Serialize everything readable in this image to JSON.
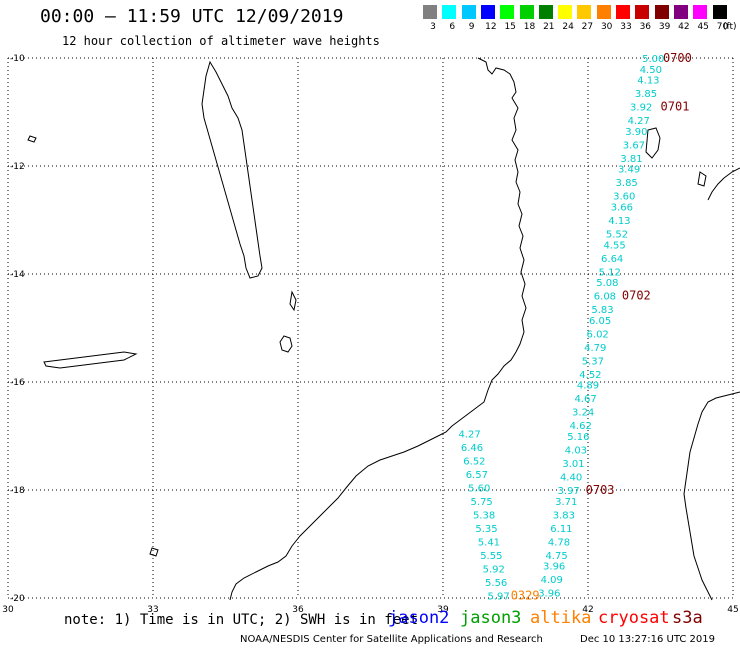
{
  "header": {
    "title": "00:00 – 11:59 UTC 12/09/2019",
    "subtitle": "12 hour collection of altimeter wave heights"
  },
  "legend": {
    "ticks": [
      "3",
      "6",
      "9",
      "12",
      "15",
      "18",
      "21",
      "24",
      "27",
      "30",
      "33",
      "36",
      "39",
      "42",
      "45",
      "70"
    ],
    "units": "(ft)",
    "colors": [
      "#808080",
      "#00ffff",
      "#00c8ff",
      "#0000ff",
      "#00ff00",
      "#00d000",
      "#008000",
      "#ffff00",
      "#ffc800",
      "#ff8000",
      "#ff0000",
      "#c80000",
      "#800000",
      "#800080",
      "#ff00ff",
      "#000000"
    ]
  },
  "axes": {
    "lon_labels": [
      "30",
      "33",
      "36",
      "39",
      "42",
      "45"
    ],
    "lat_labels": [
      "-10",
      "-12",
      "-14",
      "-16",
      "-18",
      "-20"
    ]
  },
  "track_colors": {
    "jason2": "#0000ff",
    "jason3": "#00a000",
    "altika": "#ff8000",
    "cryosat": "#ff0000",
    "s3a": "#800000",
    "obs": "#00cccc"
  },
  "observations": [
    {
      "lon": 43.35,
      "lat": -10.0,
      "v": "5.00"
    },
    {
      "lon": 43.3,
      "lat": -10.2,
      "v": "4.50"
    },
    {
      "lon": 43.25,
      "lat": -10.4,
      "v": "4.13"
    },
    {
      "lon": 43.2,
      "lat": -10.65,
      "v": "3.85"
    },
    {
      "lon": 43.1,
      "lat": -10.9,
      "v": "3.92"
    },
    {
      "lon": 43.05,
      "lat": -11.15,
      "v": "4.27"
    },
    {
      "lon": 43.0,
      "lat": -11.35,
      "v": "3.90"
    },
    {
      "lon": 42.95,
      "lat": -11.6,
      "v": "3.67"
    },
    {
      "lon": 42.9,
      "lat": -11.85,
      "v": "3.81"
    },
    {
      "lon": 42.85,
      "lat": -12.05,
      "v": "3.49"
    },
    {
      "lon": 42.8,
      "lat": -12.3,
      "v": "3.85"
    },
    {
      "lon": 42.75,
      "lat": -12.55,
      "v": "3.60"
    },
    {
      "lon": 42.7,
      "lat": -12.75,
      "v": "3.66"
    },
    {
      "lon": 42.65,
      "lat": -13.0,
      "v": "4.13"
    },
    {
      "lon": 42.6,
      "lat": -13.25,
      "v": "5.52"
    },
    {
      "lon": 42.55,
      "lat": -13.45,
      "v": "4.55"
    },
    {
      "lon": 42.5,
      "lat": -13.7,
      "v": "6.64"
    },
    {
      "lon": 42.45,
      "lat": -13.95,
      "v": "5.12"
    },
    {
      "lon": 42.4,
      "lat": -14.15,
      "v": "5.08"
    },
    {
      "lon": 42.35,
      "lat": -14.4,
      "v": "6.08"
    },
    {
      "lon": 42.3,
      "lat": -14.65,
      "v": "5.83"
    },
    {
      "lon": 42.25,
      "lat": -14.85,
      "v": "6.05"
    },
    {
      "lon": 42.2,
      "lat": -15.1,
      "v": "6.02"
    },
    {
      "lon": 42.15,
      "lat": -15.35,
      "v": "4.79"
    },
    {
      "lon": 42.1,
      "lat": -15.6,
      "v": "5.37"
    },
    {
      "lon": 42.05,
      "lat": -15.85,
      "v": "4.52"
    },
    {
      "lon": 42.0,
      "lat": -16.05,
      "v": "4.89"
    },
    {
      "lon": 41.95,
      "lat": -16.3,
      "v": "4.67"
    },
    {
      "lon": 41.9,
      "lat": -16.55,
      "v": "3.24"
    },
    {
      "lon": 41.85,
      "lat": -16.8,
      "v": "4.62"
    },
    {
      "lon": 41.8,
      "lat": -17.0,
      "v": "5.16"
    },
    {
      "lon": 41.75,
      "lat": -17.25,
      "v": "4.03"
    },
    {
      "lon": 41.7,
      "lat": -17.5,
      "v": "3.01"
    },
    {
      "lon": 41.65,
      "lat": -17.75,
      "v": "4.40"
    },
    {
      "lon": 41.6,
      "lat": -18.0,
      "v": "3.97"
    },
    {
      "lon": 41.55,
      "lat": -18.2,
      "v": "3.71"
    },
    {
      "lon": 41.5,
      "lat": -18.45,
      "v": "3.83"
    },
    {
      "lon": 41.45,
      "lat": -18.7,
      "v": "6.11"
    },
    {
      "lon": 41.4,
      "lat": -18.95,
      "v": "4.78"
    },
    {
      "lon": 41.35,
      "lat": -19.2,
      "v": "4.75"
    },
    {
      "lon": 41.3,
      "lat": -19.4,
      "v": "3.96"
    },
    {
      "lon": 41.25,
      "lat": -19.65,
      "v": "4.09"
    },
    {
      "lon": 41.2,
      "lat": -19.9,
      "v": "3.96"
    },
    {
      "lon": 39.55,
      "lat": -16.95,
      "v": "4.27"
    },
    {
      "lon": 39.6,
      "lat": -17.2,
      "v": "6.46"
    },
    {
      "lon": 39.65,
      "lat": -17.45,
      "v": "6.52"
    },
    {
      "lon": 39.7,
      "lat": -17.7,
      "v": "6.57"
    },
    {
      "lon": 39.75,
      "lat": -17.95,
      "v": "5.60"
    },
    {
      "lon": 39.8,
      "lat": -18.2,
      "v": "5.75"
    },
    {
      "lon": 39.85,
      "lat": -18.45,
      "v": "5.38"
    },
    {
      "lon": 39.9,
      "lat": -18.7,
      "v": "5.35"
    },
    {
      "lon": 39.95,
      "lat": -18.95,
      "v": "5.41"
    },
    {
      "lon": 40.0,
      "lat": -19.2,
      "v": "5.55"
    },
    {
      "lon": 40.05,
      "lat": -19.45,
      "v": "5.92"
    },
    {
      "lon": 40.1,
      "lat": -19.7,
      "v": "5.56"
    },
    {
      "lon": 40.15,
      "lat": -19.95,
      "v": "5.97"
    }
  ],
  "time_marks": [
    {
      "lon": 43.85,
      "lat": -10.0,
      "v": "0700",
      "track": "s3a"
    },
    {
      "lon": 43.8,
      "lat": -10.9,
      "v": "0701",
      "track": "s3a"
    },
    {
      "lon": 43.0,
      "lat": -14.4,
      "v": "0702",
      "track": "s3a"
    },
    {
      "lon": 42.25,
      "lat": -18.0,
      "v": "0703",
      "track": "s3a"
    },
    {
      "lon": 40.7,
      "lat": -19.95,
      "v": "0329",
      "track": "altika"
    }
  ],
  "footer": {
    "note": "note: 1) Time is in UTC; 2) SWH is in feet",
    "satellites": [
      "jason2",
      "jason3",
      "altika",
      "cryosat",
      "s3a"
    ],
    "credit": "NOAA/NESDIS Center for Satellite Applications and Research",
    "timestamp": "Dec 10 13:27:16 UTC 2019"
  }
}
